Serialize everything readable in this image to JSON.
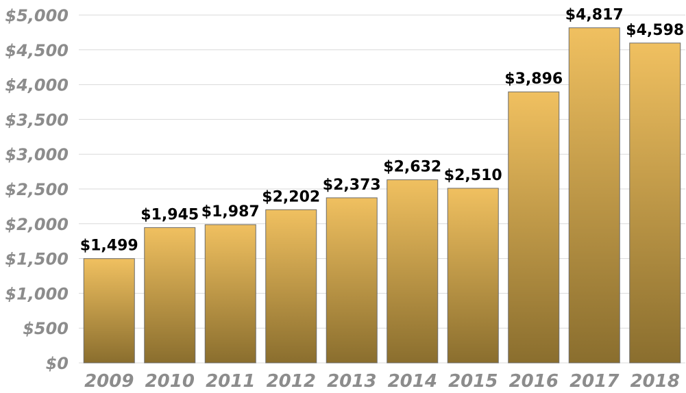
{
  "chart_data": {
    "type": "bar",
    "categories": [
      "2009",
      "2010",
      "2011",
      "2012",
      "2013",
      "2014",
      "2015",
      "2016",
      "2017",
      "2018"
    ],
    "values": [
      1499,
      1945,
      1987,
      2202,
      2373,
      2632,
      2510,
      3896,
      4817,
      4598
    ],
    "data_labels": [
      "$1,499",
      "$1,945",
      "$1,987",
      "$2,202",
      "$2,373",
      "$2,632",
      "$2,510",
      "$3,896",
      "$4,817",
      "$4,598"
    ],
    "y_ticks": [
      0,
      500,
      1000,
      1500,
      2000,
      2500,
      3000,
      3500,
      4000,
      4500,
      5000
    ],
    "y_tick_labels": [
      "$0",
      "$500",
      "$1,000",
      "$1,500",
      "$2,000",
      "$2,500",
      "$3,000",
      "$3,500",
      "$4,000",
      "$4,500",
      "$5,000"
    ],
    "ylim": [
      0,
      5000
    ],
    "title": "",
    "xlabel": "",
    "ylabel": "",
    "grid": true,
    "legend": "none",
    "colors": {
      "bar_top": "#f0c060",
      "bar_bottom": "#8a6e2e",
      "bar_stroke": "#6b6b6b",
      "tick_text": "#8c8c8c",
      "label_text": "#000000",
      "grid": "#d9d9d9"
    }
  }
}
